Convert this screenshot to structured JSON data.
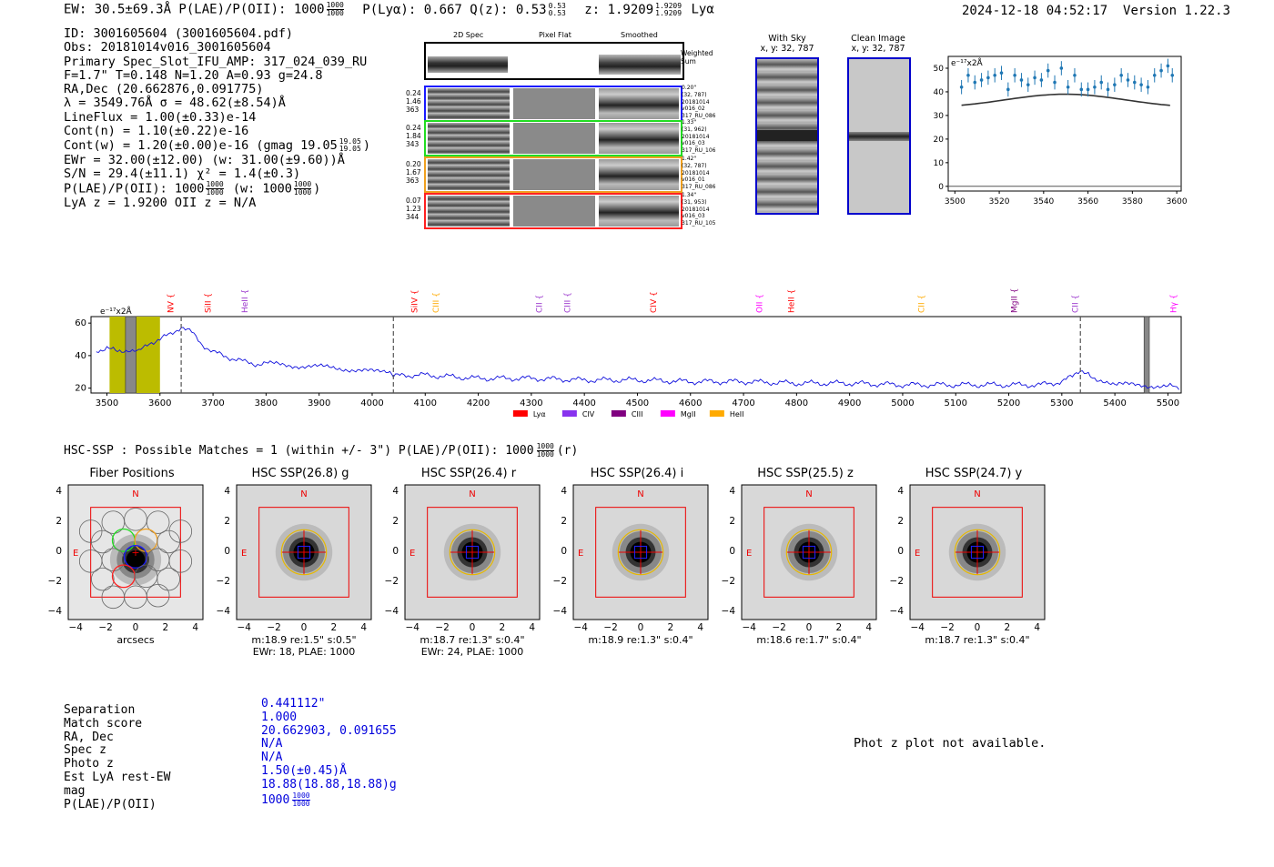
{
  "header": {
    "left": "EW: 30.5±69.3Å  P(LAE)/P(OII): 1000",
    "left_sup": "1000",
    "left_sub": "1000",
    "lya_label": "P(Lyα): 0.667  Q(z): 0.53",
    "q_sup": "0.53",
    "q_sub": "0.53",
    "z_label": "z: 1.9209",
    "z_sup": "1.9209",
    "z_sub": "1.9209",
    "z_suffix": "Lyα",
    "timestamp": "2024-12-18 04:52:17",
    "version": "Version 1.22.3"
  },
  "info": {
    "lines": [
      "ID: 3001605604 (3001605604.pdf)",
      "Obs: 20181014v016_3001605604",
      "Primary Spec_Slot_IFU_AMP: 317_024_039_RU",
      "F=1.7\"  T=0.148  N=1.20  A=0.93  g=24.8",
      "RA,Dec (20.662876,0.091775)",
      "λ = 3549.76Å  σ = 48.62(±8.54)Å",
      "LineFlux = 1.00(±0.33)e-14",
      "Cont(n) = 1.10(±0.22)e-16"
    ],
    "contw": "Cont(w) = 1.20(±0.00)e-16 (gmag 19.05",
    "contw_sup": "19.05",
    "contw_sub": "19.05",
    "contw_end": ")",
    "lines2": [
      "EWr = 32.00(±12.00) (w: 31.00(±9.60))Å",
      "S/N = 29.4(±11.1)  χ² = 1.4(±0.3)"
    ],
    "plae": "P(LAE)/P(OII): 1000",
    "plae_sup": "1000",
    "plae_sub": "1000",
    "plae_w": "(w: 1000",
    "plae_w_sup": "1000",
    "plae_w_sub": "1000",
    "plae_w_end": ")",
    "lyaz": "LyA z = 1.9200  OII z = N/A"
  },
  "cutouts": {
    "col_headers": [
      "2D Spec",
      "Pixel Flat",
      "Smoothed"
    ],
    "weighted_label": "Weighted Sum",
    "rows": [
      {
        "left": [
          "0.24",
          "1.46",
          "363"
        ],
        "right": [
          "0.20\"",
          "(32, 787)",
          "20181014",
          "v016_02",
          "317_RU_086"
        ],
        "color": "#1a1aff"
      },
      {
        "left": [
          "0.24",
          "1.84",
          "343"
        ],
        "right": [
          "1.33\"",
          "(31, 962)",
          "20181014",
          "v016_03",
          "317_RU_106"
        ],
        "color": "#22dd22"
      },
      {
        "left": [
          "0.20",
          "1.67",
          "363"
        ],
        "right": [
          "1.42\"",
          "(32, 787)",
          "20181014",
          "v016_01",
          "317_RU_086"
        ],
        "color": "#f0a020"
      },
      {
        "left": [
          "0.07",
          "1.23",
          "344"
        ],
        "right": [
          "1.34\"",
          "(31, 953)",
          "20181014",
          "v016_03",
          "317_RU_105"
        ],
        "color": "#ff2020"
      }
    ],
    "with_sky_title": "With Sky",
    "with_sky_xy": "x, y: 32, 787",
    "clean_title": "Clean Image",
    "clean_xy": "x, y: 32, 787"
  },
  "chart_data": [
    {
      "type": "line",
      "title": "",
      "ylabel_note": "e⁻¹⁷x2Å",
      "x": [
        3503,
        3506,
        3509,
        3512,
        3515,
        3518,
        3521,
        3524,
        3527,
        3530,
        3533,
        3536,
        3539,
        3542,
        3545,
        3548,
        3551,
        3554,
        3557,
        3560,
        3563,
        3566,
        3569,
        3572,
        3575,
        3578,
        3581,
        3584,
        3587,
        3590,
        3593,
        3596,
        3598
      ],
      "y": [
        42,
        47,
        44,
        45,
        46,
        47,
        48,
        41,
        47,
        45,
        43,
        46,
        45,
        49,
        44,
        50,
        42,
        47,
        41,
        41,
        42,
        44,
        41,
        43,
        47,
        45,
        44,
        43,
        42,
        47,
        49,
        51,
        47
      ],
      "fit": {
        "peak_x": 3549.76,
        "peak_y": 39,
        "base_y": 33
      },
      "xlim": [
        3497,
        3602
      ],
      "ylim": [
        -2,
        55
      ],
      "xticks": [
        3500,
        3520,
        3540,
        3560,
        3580,
        3600
      ],
      "yticks": [
        0,
        10,
        20,
        30,
        40,
        50
      ]
    },
    {
      "type": "line",
      "title": "",
      "ylabel_note": "e⁻¹⁷x2Å",
      "xlim": [
        3470,
        5525
      ],
      "ylim": [
        17,
        64
      ],
      "xticks": [
        3500,
        3600,
        3700,
        3800,
        3900,
        4000,
        4100,
        4200,
        4300,
        4400,
        4500,
        4600,
        4700,
        4800,
        4900,
        5000,
        5100,
        5200,
        5300,
        5400,
        5500
      ],
      "yticks": [
        20,
        40,
        60
      ],
      "x": [
        3480,
        3500,
        3520,
        3540,
        3560,
        3580,
        3600,
        3620,
        3640,
        3660,
        3680,
        3700,
        3720,
        3740,
        3760,
        3780,
        3800,
        3850,
        3900,
        3950,
        4000,
        4030,
        4040,
        4060,
        4100,
        4200,
        4300,
        4400,
        4500,
        4600,
        4700,
        4800,
        4900,
        5000,
        5100,
        5200,
        5260,
        5300,
        5320,
        5335,
        5350,
        5370,
        5400,
        5450,
        5500,
        5525
      ],
      "y": [
        43,
        45,
        42,
        44,
        42,
        48,
        50,
        53,
        58,
        54,
        47,
        42,
        40,
        38,
        36,
        35,
        35,
        34,
        33,
        32,
        30,
        29,
        27,
        28,
        28,
        26,
        26,
        25,
        25,
        24,
        24,
        23,
        23,
        22,
        22,
        22,
        22,
        24,
        27,
        30,
        29,
        25,
        22,
        22,
        21,
        21
      ],
      "line_markers": [
        {
          "name": "NV",
          "x": 3620,
          "color": "#ff0000"
        },
        {
          "name": "SiII",
          "x": 3690,
          "color": "#ff0000"
        },
        {
          "name": "HeII",
          "x": 3760,
          "color": "#9933cc"
        },
        {
          "name": "SiIV",
          "x": 4080,
          "color": "#ff0000"
        },
        {
          "name": "CIII",
          "x": 4120,
          "color": "#ffaa00"
        },
        {
          "name": "CII",
          "x": 4315,
          "color": "#9933cc"
        },
        {
          "name": "CIII",
          "x": 4368,
          "color": "#9933cc"
        },
        {
          "name": "CIV",
          "x": 4530,
          "color": "#ff0000"
        },
        {
          "name": "OII",
          "x": 4730,
          "color": "#ff00ff"
        },
        {
          "name": "HeII",
          "x": 4790,
          "color": "#ff0000"
        },
        {
          "name": "CII",
          "x": 5035,
          "color": "#ffaa00"
        },
        {
          "name": "MgII",
          "x": 5210,
          "color": "#800080"
        },
        {
          "name": "CII",
          "x": 5325,
          "color": "#9933cc"
        },
        {
          "name": "Hγ",
          "x": 5510,
          "color": "#ff00ff"
        }
      ],
      "dashed_lines": [
        3640,
        4040,
        5335
      ],
      "legend": [
        {
          "name": "Lyα",
          "color": "#ff0000"
        },
        {
          "name": "CIV",
          "color": "#8833ee"
        },
        {
          "name": "CIII",
          "color": "#800080"
        },
        {
          "name": "MgII",
          "color": "#ff00ff"
        },
        {
          "name": "HeII",
          "color": "#ffaa00"
        }
      ],
      "highlight_band": [
        3505,
        3600
      ],
      "hatched_bands": [
        [
          3535,
          3555
        ],
        [
          5455,
          5465
        ]
      ]
    }
  ],
  "hsc": {
    "title": "HSC-SSP : Possible Matches = 1 (within +/- 3\")  P(LAE)/P(OII): 1000",
    "title_sup": "1000",
    "title_sub": "1000",
    "title_end": "(r)",
    "panels": [
      {
        "title": "Fiber Positions",
        "cap1": "arcsecs",
        "cap2": ""
      },
      {
        "title": "HSC SSP(26.8) g",
        "cap1": "m:18.9  re:1.5\"  s:0.5\"",
        "cap2": "EWr: 18, PLAE: 1000"
      },
      {
        "title": "HSC SSP(26.4) r",
        "cap1": "m:18.7  re:1.3\"  s:0.4\"",
        "cap2": "EWr: 24, PLAE: 1000"
      },
      {
        "title": "HSC SSP(26.4) i",
        "cap1": "m:18.9  re:1.3\"  s:0.4\"",
        "cap2": ""
      },
      {
        "title": "HSC SSP(25.5) z",
        "cap1": "m:18.6  re:1.7\"  s:0.4\"",
        "cap2": ""
      },
      {
        "title": "HSC SSP(24.7) y",
        "cap1": "m:18.7  re:1.3\"  s:0.4\"",
        "cap2": ""
      }
    ],
    "ticks": [
      "4",
      "2",
      "0",
      "−2",
      "−4"
    ],
    "xticks": [
      "−4",
      "−2",
      "0",
      "2",
      "4"
    ],
    "n_label": "N",
    "e_label": "E"
  },
  "match": {
    "labels": [
      "Separation",
      "Match score",
      "RA, Dec",
      "Spec z",
      "Photo z",
      "Est LyA rest-EW",
      "mag",
      "P(LAE)/P(OII)"
    ],
    "values": [
      "0.441112\"",
      "1.000",
      "20.662903, 0.091655",
      "N/A",
      "N/A",
      "1.50(±0.45)Å",
      "18.88(18.88,18.88)g",
      "1000"
    ],
    "plae_sup": "1000",
    "plae_sub": "1000",
    "photz_note": "Phot z plot not available."
  }
}
